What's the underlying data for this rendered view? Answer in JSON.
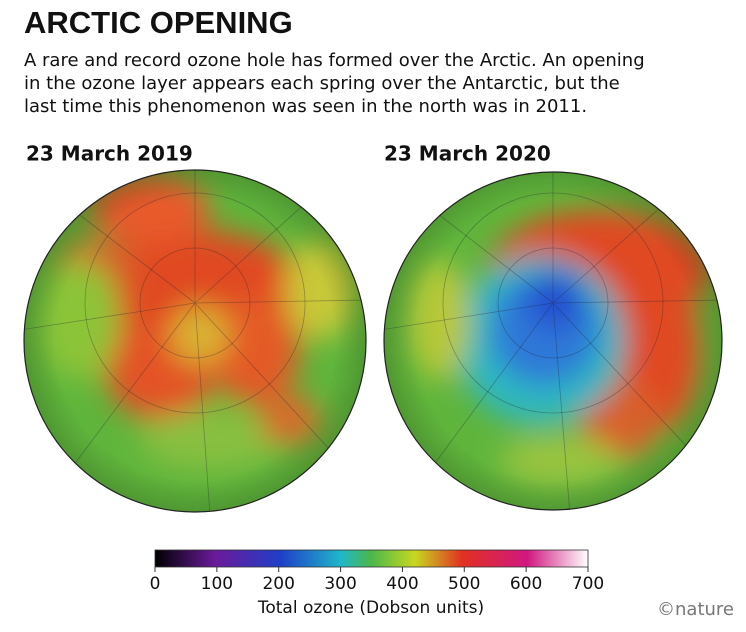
{
  "header": {
    "title": "ARCTIC OPENING",
    "subtitle": [
      "A rare and record ozone hole has formed over the Arctic. An opening",
      "in the ozone layer appears each spring over the Antarctic, but the",
      "last time this phenomenon was seen in the north was in 2011."
    ]
  },
  "panels": [
    {
      "title": "23 March 2019"
    },
    {
      "title": "23 March 2020"
    }
  ],
  "colorbar": {
    "lim": [
      0,
      700
    ],
    "ticks": [
      0,
      100,
      200,
      300,
      400,
      500,
      600,
      700
    ],
    "label": "Total ozone (Dobson units)"
  },
  "credit": "©nature"
}
